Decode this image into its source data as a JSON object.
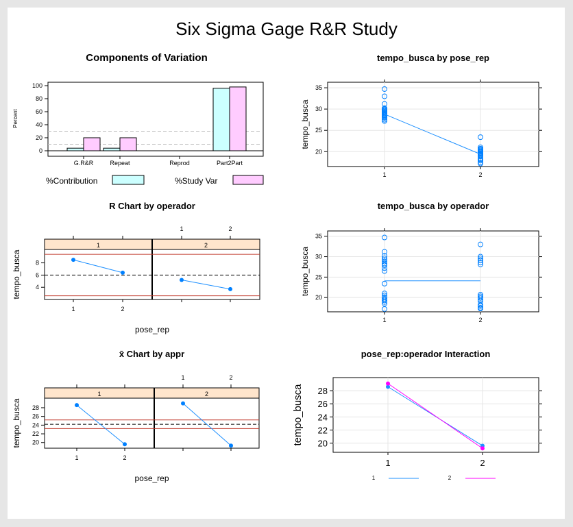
{
  "page": {
    "title": "Six Sigma Gage R&R Study"
  },
  "colors": {
    "line_blue": "#1e90ff",
    "line_magenta": "#ff00ff",
    "point_blue": "#0080ff",
    "contribution_fill": "#ccffff",
    "studyvar_fill": "#ffccff",
    "strip_fill": "#ffe5cc",
    "limit_red": "#c0392b",
    "grid": "#e5e5e5",
    "ref_gray": "#bfbfbf"
  },
  "chart_data": [
    {
      "id": "components",
      "type": "bar",
      "title": "Components of Variation",
      "ylabel": "Percent",
      "categories": [
        "G.R&R",
        "Repeat",
        "Reprod",
        "Part2Part"
      ],
      "yticks": [
        "0",
        "20",
        "40",
        "60",
        "80",
        "100"
      ],
      "ylim": [
        0,
        100
      ],
      "series": [
        {
          "name": "%Contribution",
          "values": [
            4,
            4,
            0,
            96
          ]
        },
        {
          "name": "%Study Var",
          "values": [
            20,
            20,
            0,
            98
          ]
        }
      ],
      "reference_lines": [
        10,
        30
      ],
      "legend": "bottom"
    },
    {
      "id": "by-pose",
      "type": "scatter",
      "title": "tempo_busca by pose_rep",
      "ylabel": "tempo_busca",
      "categories": [
        "1",
        "2"
      ],
      "yticks": [
        "20",
        "25",
        "30",
        "35"
      ],
      "ylim": [
        16.5,
        36.3
      ],
      "points": {
        "1": [
          34.7,
          33.0,
          31.2,
          30.2,
          30.0,
          29.8,
          29.6,
          29.4,
          29.2,
          29.0,
          28.8,
          28.6,
          28.5,
          28.3,
          28.1,
          27.9,
          27.5,
          27.2
        ],
        "2": [
          23.4,
          21.0,
          20.7,
          20.5,
          20.3,
          20.1,
          19.9,
          19.7,
          19.5,
          19.3,
          19.1,
          18.9,
          18.5,
          18.2,
          17.9,
          17.5,
          17.2
        ]
      },
      "means": [
        28.8,
        19.4
      ]
    },
    {
      "id": "r-chart",
      "type": "line",
      "title": "R Chart by operador",
      "xlabel": "pose_rep",
      "ylabel": "tempo_busca",
      "panels": [
        "1",
        "2"
      ],
      "categories": [
        "1",
        "2"
      ],
      "yticks": [
        "4",
        "6",
        "8"
      ],
      "ylim": [
        2.0,
        10.2
      ],
      "series": [
        {
          "panel": "1",
          "values": [
            8.5,
            6.4
          ]
        },
        {
          "panel": "2",
          "values": [
            5.2,
            3.7
          ]
        }
      ],
      "center_line": 6.0,
      "limits": [
        2.6,
        9.4
      ]
    },
    {
      "id": "by-operador",
      "type": "scatter",
      "title": "tempo_busca by operador",
      "ylabel": "tempo_busca",
      "categories": [
        "1",
        "2"
      ],
      "yticks": [
        "20",
        "25",
        "30",
        "35"
      ],
      "ylim": [
        16.5,
        36.3
      ],
      "points": {
        "1": [
          34.7,
          31.2,
          30.2,
          29.6,
          29.2,
          28.8,
          28.3,
          27.9,
          27.2,
          26.5,
          23.4,
          21.0,
          20.5,
          20.1,
          19.7,
          19.3,
          18.9,
          18.5,
          17.2
        ],
        "2": [
          33.0,
          30.0,
          29.6,
          29.2,
          28.6,
          28.1,
          20.7,
          20.3,
          19.9,
          19.5,
          19.1,
          18.2,
          17.9,
          17.5,
          17.3
        ]
      },
      "means": [
        24.1,
        24.1
      ]
    },
    {
      "id": "xbar-chart",
      "type": "line",
      "title": "x̄ Chart by appr",
      "xlabel": "pose_rep",
      "ylabel": "tempo_busca",
      "panels": [
        "1",
        "2"
      ],
      "categories": [
        "1",
        "2"
      ],
      "yticks": [
        "20",
        "22",
        "24",
        "26",
        "28"
      ],
      "ylim": [
        18.7,
        30.2
      ],
      "series": [
        {
          "panel": "1",
          "values": [
            28.6,
            19.6
          ]
        },
        {
          "panel": "2",
          "values": [
            29.0,
            19.3
          ]
        }
      ],
      "center_line": 24.2,
      "limits": [
        23.2,
        25.2
      ]
    },
    {
      "id": "interaction",
      "type": "line",
      "title": "pose_rep:operador Interaction",
      "ylabel": "tempo_busca",
      "categories": [
        "1",
        "2"
      ],
      "yticks": [
        "20",
        "22",
        "24",
        "26",
        "28"
      ],
      "ylim": [
        18.6,
        30.0
      ],
      "series": [
        {
          "name": "1",
          "values": [
            28.6,
            19.6
          ]
        },
        {
          "name": "2",
          "values": [
            29.1,
            19.2
          ]
        }
      ],
      "legend": "bottom"
    }
  ]
}
